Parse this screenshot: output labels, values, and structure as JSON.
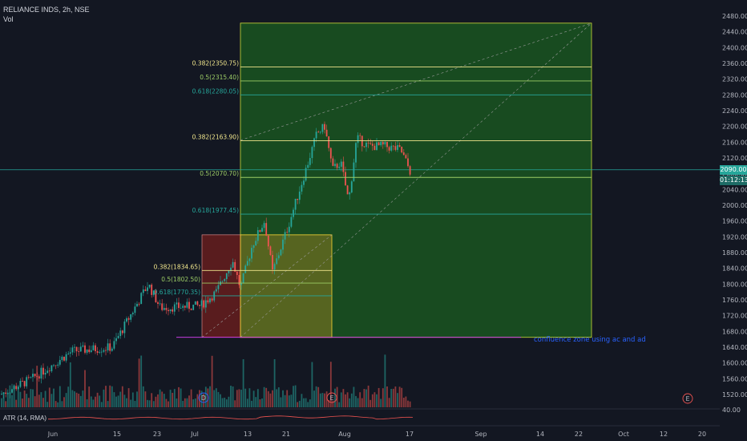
{
  "header": {
    "symbol": "RELIANCE INDS, 2h, NSE",
    "volume_label": "Vol"
  },
  "price_axis": {
    "ticks": [
      "2480.00",
      "2440.00",
      "2400.00",
      "2360.00",
      "2320.00",
      "2280.00",
      "2240.00",
      "2200.00",
      "2160.00",
      "2120.00",
      "2080.00",
      "2040.00",
      "2000.00",
      "1960.00",
      "1920.00",
      "1880.00",
      "1840.00",
      "1800.00",
      "1760.00",
      "1720.00",
      "1680.00",
      "1640.00",
      "1600.00",
      "1560.00",
      "1520.00"
    ],
    "tick_values": [
      2480,
      2440,
      2400,
      2360,
      2320,
      2280,
      2240,
      2200,
      2160,
      2120,
      2080,
      2040,
      2000,
      1960,
      1920,
      1880,
      1840,
      1800,
      1760,
      1720,
      1680,
      1640,
      1600,
      1560,
      1520
    ],
    "current_price": "2090.00",
    "countdown": "01:12:13",
    "atr_value": "40.00"
  },
  "time_axis": {
    "labels": [
      "Jun",
      "15",
      "23",
      "Jul",
      "13",
      "21",
      "Aug",
      "17",
      "Sep",
      "14",
      "22",
      "Oct",
      "12",
      "20"
    ]
  },
  "fib_big": [
    {
      "label": "0.382(2350.75)",
      "value": 2350.75,
      "color": "#f0e68c"
    },
    {
      "label": "0.5(2315.40)",
      "value": 2315.4,
      "color": "#9ccc65"
    },
    {
      "label": "0.618(2280.05)",
      "value": 2280.05,
      "color": "#26a69a"
    },
    {
      "label": "0.382(2163.90)",
      "value": 2163.9,
      "color": "#f0e68c"
    },
    {
      "label": "0.5(2070.70)",
      "value": 2070.7,
      "color": "#9ccc65"
    },
    {
      "label": "0.618(1977.45)",
      "value": 1977.45,
      "color": "#26a69a"
    }
  ],
  "fib_small": [
    {
      "label": "0.382(1834.65)",
      "value": 1834.65,
      "color": "#f0e68c"
    },
    {
      "label": "0.5(1802.50)",
      "value": 1802.5,
      "color": "#9ccc65"
    },
    {
      "label": "0.618(1770.35)",
      "value": 1770.35,
      "color": "#26a69a"
    }
  ],
  "annotation": "confluence zone using ac and ad",
  "indicator": "ATR (14, RMA)",
  "event_markers": [
    "D",
    "E",
    "E"
  ],
  "colors": {
    "background": "#131722",
    "up": "#26a69a",
    "down": "#ef5350",
    "green_zone": "#1b5e20",
    "red_zone": "#5c1a1a",
    "orange_zone": "#7a6a1a",
    "current_line": "#26a69a"
  }
}
